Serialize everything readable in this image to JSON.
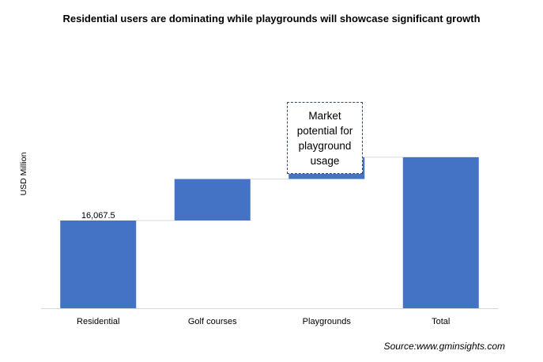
{
  "chart_data": {
    "type": "bar",
    "subtype": "waterfall",
    "title": "Residential users are dominating while playgrounds will showcase significant growth",
    "ylabel": "USD Million",
    "xlabel": "",
    "categories": [
      "Residential",
      "Golf courses",
      "Playgrounds",
      "Total"
    ],
    "series": [
      {
        "values": [
          16067.5,
          7600,
          4000,
          27667.5
        ],
        "color": "#4472c4"
      }
    ],
    "ylim": [
      0,
      55000
    ],
    "data_labels": {
      "Residential": "16,067.5"
    },
    "annotation": "Market potential for playground usage",
    "grid": false,
    "connector_lines": true
  },
  "source": "Source:www.gminsights.com"
}
